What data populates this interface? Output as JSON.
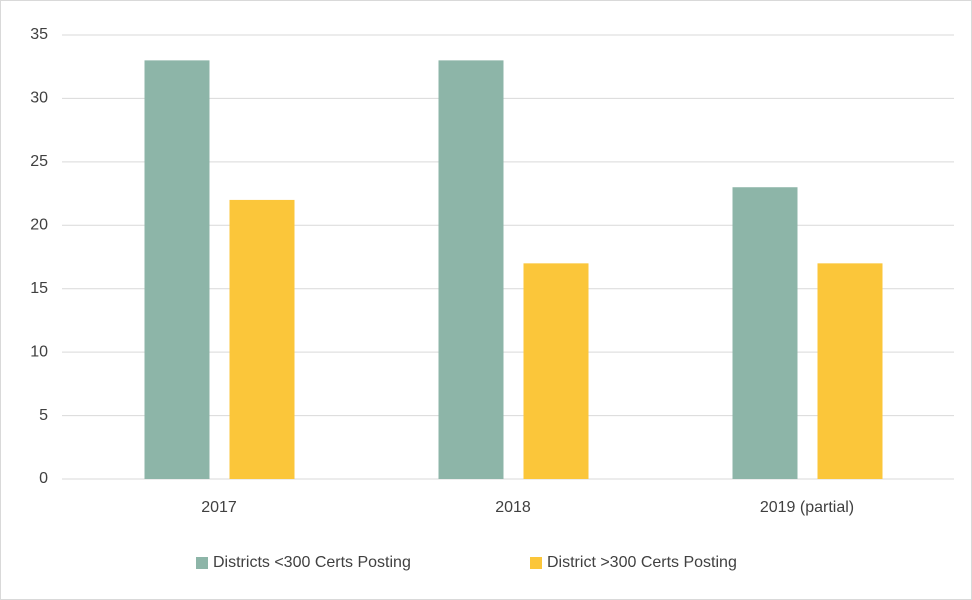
{
  "chart_data": {
    "type": "bar",
    "categories": [
      "2017",
      "2018",
      "2019 (partial)"
    ],
    "series": [
      {
        "name": "Districts <300 Certs Posting",
        "color": "#8db5a8",
        "values": [
          33,
          33,
          23
        ]
      },
      {
        "name": "District >300 Certs Posting",
        "color": "#fbc63a",
        "values": [
          22,
          17,
          17
        ]
      }
    ],
    "ylim": [
      0,
      35
    ],
    "yticks": [
      0,
      5,
      10,
      15,
      20,
      25,
      30,
      35
    ],
    "grid": true,
    "legend": "bottom"
  }
}
